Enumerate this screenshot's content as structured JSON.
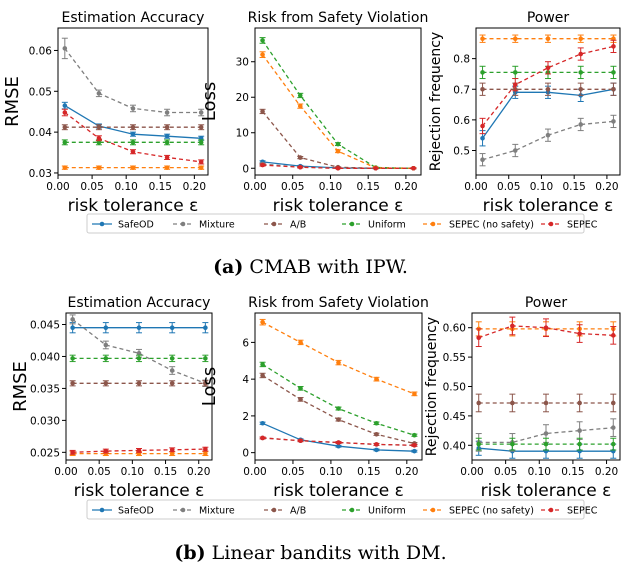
{
  "legend": [
    {
      "name": "SafeOD",
      "color": "#1f77b4"
    },
    {
      "name": "Mixture",
      "color": "#7f7f7f"
    },
    {
      "name": "A/B",
      "color": "#8c564b"
    },
    {
      "name": "Uniform",
      "color": "#2ca02c"
    },
    {
      "name": "SEPEC (no safety)",
      "color": "#ff7f0e"
    },
    {
      "name": "SEPEC",
      "color": "#d62728"
    }
  ],
  "captions": {
    "a_label": "(a)",
    "a_text": "CMAB with IPW.",
    "b_label": "(b)",
    "b_text": "Linear bandits with DM."
  },
  "chart_data": [
    {
      "type": "line",
      "title": "Estimation Accuracy",
      "xlabel": "risk tolerance ε",
      "ylabel": "RMSE",
      "x": [
        0.01,
        0.06,
        0.11,
        0.16,
        0.21
      ],
      "xticks": [
        "0.00",
        "0.05",
        "0.10",
        "0.15",
        "0.20"
      ],
      "xlim": [
        0.0,
        0.22
      ],
      "ylim": [
        0.0295,
        0.0655
      ],
      "yticks": [
        0.03,
        0.04,
        0.05,
        0.06
      ],
      "yticklabels": [
        "0.03",
        "0.04",
        "0.05",
        "0.06"
      ],
      "series": [
        {
          "name": "SafeOD",
          "values": [
            0.0465,
            0.0415,
            0.0395,
            0.039,
            0.0385
          ],
          "err": [
            0.0008,
            0.0005,
            0.0005,
            0.0005,
            0.0005
          ]
        },
        {
          "name": "Mixture",
          "values": [
            0.0605,
            0.0495,
            0.0458,
            0.0448,
            0.0448
          ],
          "err": [
            0.0025,
            0.0008,
            0.0008,
            0.0008,
            0.0008
          ]
        },
        {
          "name": "A/B",
          "values": [
            0.0412,
            0.0412,
            0.0412,
            0.0412,
            0.0412
          ],
          "err": [
            0.0006,
            0.0006,
            0.0006,
            0.0006,
            0.0006
          ]
        },
        {
          "name": "Uniform",
          "values": [
            0.0375,
            0.0375,
            0.0375,
            0.0375,
            0.0375
          ],
          "err": [
            0.0006,
            0.0006,
            0.0006,
            0.0006,
            0.0006
          ]
        },
        {
          "name": "SEPEC (no safety)",
          "values": [
            0.0313,
            0.0313,
            0.0313,
            0.0313,
            0.0313
          ],
          "err": [
            0.0004,
            0.0004,
            0.0004,
            0.0004,
            0.0004
          ]
        },
        {
          "name": "SEPEC",
          "values": [
            0.0448,
            0.0385,
            0.0352,
            0.0338,
            0.0327
          ],
          "err": [
            0.0008,
            0.0006,
            0.0005,
            0.0005,
            0.0005
          ]
        }
      ]
    },
    {
      "type": "line",
      "title": "Risk from Safety Violation",
      "xlabel": "risk tolerance ε",
      "ylabel": "Loss",
      "x": [
        0.01,
        0.06,
        0.11,
        0.16,
        0.21
      ],
      "xticks": [
        "0.00",
        "0.05",
        "0.10",
        "0.15",
        "0.20"
      ],
      "xlim": [
        0.0,
        0.22
      ],
      "ylim": [
        -1.9,
        39.5
      ],
      "yticks": [
        0,
        10,
        20,
        30
      ],
      "yticklabels": [
        "0",
        "10",
        "20",
        "30"
      ],
      "series": [
        {
          "name": "SafeOD",
          "values": [
            1.8,
            0.6,
            0.1,
            0.0,
            0.0
          ],
          "err": [
            0.3,
            0.2,
            0.1,
            0.1,
            0.1
          ]
        },
        {
          "name": "Mixture",
          "values": [
            1.2,
            0.3,
            0.0,
            0.0,
            0.0
          ],
          "err": [
            0.3,
            0.2,
            0.1,
            0.1,
            0.1
          ]
        },
        {
          "name": "A/B",
          "values": [
            16.0,
            3.0,
            0.3,
            0.0,
            0.0
          ],
          "err": [
            0.6,
            0.3,
            0.1,
            0.1,
            0.1
          ]
        },
        {
          "name": "Uniform",
          "values": [
            36.0,
            20.5,
            6.8,
            0.2,
            0.0
          ],
          "err": [
            0.8,
            0.6,
            0.4,
            0.1,
            0.1
          ]
        },
        {
          "name": "SEPEC (no safety)",
          "values": [
            32.0,
            17.5,
            4.8,
            0.1,
            0.0
          ],
          "err": [
            0.8,
            0.6,
            0.4,
            0.1,
            0.1
          ]
        },
        {
          "name": "SEPEC",
          "values": [
            0.9,
            0.3,
            0.0,
            0.0,
            0.0
          ],
          "err": [
            0.3,
            0.2,
            0.1,
            0.1,
            0.1
          ]
        }
      ]
    },
    {
      "type": "line",
      "title": "Power",
      "xlabel": "risk tolerance ε",
      "ylabel": "Rejection frequency",
      "x": [
        0.01,
        0.06,
        0.11,
        0.16,
        0.21
      ],
      "xticks": [
        "0.00",
        "0.05",
        "0.10",
        "0.15",
        "0.20"
      ],
      "xlim": [
        0.0,
        0.22
      ],
      "ylim": [
        0.42,
        0.9
      ],
      "yticks": [
        0.5,
        0.6,
        0.7,
        0.8
      ],
      "yticklabels": [
        "0.5",
        "0.6",
        "0.7",
        "0.8"
      ],
      "series": [
        {
          "name": "SafeOD",
          "values": [
            0.54,
            0.69,
            0.69,
            0.68,
            0.7
          ],
          "err": [
            0.025,
            0.02,
            0.02,
            0.02,
            0.02
          ]
        },
        {
          "name": "Mixture",
          "values": [
            0.47,
            0.5,
            0.55,
            0.585,
            0.595
          ],
          "err": [
            0.02,
            0.02,
            0.02,
            0.02,
            0.02
          ]
        },
        {
          "name": "A/B",
          "values": [
            0.7,
            0.7,
            0.7,
            0.7,
            0.7
          ],
          "err": [
            0.02,
            0.02,
            0.02,
            0.02,
            0.02
          ]
        },
        {
          "name": "Uniform",
          "values": [
            0.755,
            0.755,
            0.755,
            0.755,
            0.755
          ],
          "err": [
            0.02,
            0.02,
            0.02,
            0.02,
            0.02
          ]
        },
        {
          "name": "SEPEC (no safety)",
          "values": [
            0.865,
            0.865,
            0.865,
            0.865,
            0.865
          ],
          "err": [
            0.012,
            0.012,
            0.012,
            0.012,
            0.012
          ]
        },
        {
          "name": "SEPEC",
          "values": [
            0.58,
            0.715,
            0.77,
            0.815,
            0.84
          ],
          "err": [
            0.025,
            0.02,
            0.02,
            0.02,
            0.02
          ]
        }
      ]
    },
    {
      "type": "line",
      "title": "Estimation Accuracy",
      "xlabel": "risk tolerance ε",
      "ylabel": "RMSE",
      "x": [
        0.01,
        0.06,
        0.11,
        0.16,
        0.21
      ],
      "xticks": [
        "0.00",
        "0.05",
        "0.10",
        "0.15",
        "0.20"
      ],
      "xlim": [
        0.0,
        0.22
      ],
      "ylim": [
        0.0238,
        0.0468
      ],
      "yticks": [
        0.025,
        0.03,
        0.035,
        0.04,
        0.045
      ],
      "yticklabels": [
        "0.025",
        "0.030",
        "0.035",
        "0.040",
        "0.045"
      ],
      "series": [
        {
          "name": "SafeOD",
          "values": [
            0.0445,
            0.0445,
            0.0445,
            0.0445,
            0.0445
          ],
          "err": [
            0.0008,
            0.0008,
            0.0008,
            0.0008,
            0.0008
          ]
        },
        {
          "name": "Mixture",
          "values": [
            0.0458,
            0.0418,
            0.0405,
            0.0378,
            0.0358
          ],
          "err": [
            0.0007,
            0.0006,
            0.0006,
            0.0006,
            0.0005
          ]
        },
        {
          "name": "A/B",
          "values": [
            0.0358,
            0.0358,
            0.0358,
            0.0358,
            0.0358
          ],
          "err": [
            0.0004,
            0.0004,
            0.0004,
            0.0004,
            0.0004
          ]
        },
        {
          "name": "Uniform",
          "values": [
            0.0397,
            0.0397,
            0.0397,
            0.0397,
            0.0397
          ],
          "err": [
            0.0005,
            0.0005,
            0.0005,
            0.0005,
            0.0005
          ]
        },
        {
          "name": "SEPEC (no safety)",
          "values": [
            0.0248,
            0.0248,
            0.0248,
            0.0248,
            0.0248
          ],
          "err": [
            0.0003,
            0.0003,
            0.0003,
            0.0003,
            0.0003
          ]
        },
        {
          "name": "SEPEC",
          "values": [
            0.025,
            0.0252,
            0.0253,
            0.0254,
            0.0255
          ],
          "err": [
            0.0003,
            0.0003,
            0.0003,
            0.0003,
            0.0003
          ]
        }
      ]
    },
    {
      "type": "line",
      "title": "Risk from Safety Violation",
      "xlabel": "risk tolerance ε",
      "ylabel": "Loss",
      "x": [
        0.01,
        0.06,
        0.11,
        0.16,
        0.21
      ],
      "xticks": [
        "0.00",
        "0.05",
        "0.10",
        "0.15",
        "0.20"
      ],
      "xlim": [
        0.0,
        0.22
      ],
      "ylim": [
        -0.4,
        7.6
      ],
      "yticks": [
        0,
        2,
        4,
        6
      ],
      "yticklabels": [
        "0",
        "2",
        "4",
        "6"
      ],
      "series": [
        {
          "name": "SafeOD",
          "values": [
            1.6,
            0.7,
            0.35,
            0.15,
            0.08
          ],
          "err": [
            0.06,
            0.05,
            0.05,
            0.05,
            0.05
          ]
        },
        {
          "name": "Mixture",
          "values": [
            0.8,
            0.65,
            0.55,
            0.45,
            0.4
          ],
          "err": [
            0.05,
            0.05,
            0.05,
            0.05,
            0.05
          ]
        },
        {
          "name": "A/B",
          "values": [
            4.2,
            2.9,
            1.8,
            1.0,
            0.5
          ],
          "err": [
            0.12,
            0.1,
            0.08,
            0.06,
            0.05
          ]
        },
        {
          "name": "Uniform",
          "values": [
            4.8,
            3.5,
            2.4,
            1.6,
            0.95
          ],
          "err": [
            0.12,
            0.1,
            0.08,
            0.07,
            0.06
          ]
        },
        {
          "name": "SEPEC (no safety)",
          "values": [
            7.1,
            6.0,
            4.9,
            4.0,
            3.2
          ],
          "err": [
            0.15,
            0.12,
            0.12,
            0.1,
            0.1
          ]
        },
        {
          "name": "SEPEC",
          "values": [
            0.8,
            0.65,
            0.55,
            0.45,
            0.4
          ],
          "err": [
            0.05,
            0.05,
            0.05,
            0.05,
            0.05
          ]
        }
      ]
    },
    {
      "type": "line",
      "title": "Power",
      "xlabel": "risk tolerance ε",
      "ylabel": "Rejection frequency",
      "x": [
        0.01,
        0.06,
        0.11,
        0.16,
        0.21
      ],
      "xticks": [
        "0.00",
        "0.05",
        "0.10",
        "0.15",
        "0.20"
      ],
      "xlim": [
        0.0,
        0.22
      ],
      "ylim": [
        0.375,
        0.625
      ],
      "yticks": [
        0.4,
        0.45,
        0.5,
        0.55,
        0.6
      ],
      "yticklabels": [
        "0.40",
        "0.45",
        "0.50",
        "0.55",
        "0.60"
      ],
      "series": [
        {
          "name": "SafeOD",
          "values": [
            0.395,
            0.39,
            0.39,
            0.39,
            0.39
          ],
          "err": [
            0.012,
            0.012,
            0.012,
            0.012,
            0.012
          ]
        },
        {
          "name": "Mixture",
          "values": [
            0.405,
            0.405,
            0.42,
            0.425,
            0.43
          ],
          "err": [
            0.015,
            0.015,
            0.015,
            0.015,
            0.015
          ]
        },
        {
          "name": "A/B",
          "values": [
            0.472,
            0.472,
            0.472,
            0.472,
            0.472
          ],
          "err": [
            0.015,
            0.015,
            0.015,
            0.015,
            0.015
          ]
        },
        {
          "name": "Uniform",
          "values": [
            0.402,
            0.402,
            0.402,
            0.402,
            0.402
          ],
          "err": [
            0.01,
            0.01,
            0.01,
            0.01,
            0.01
          ]
        },
        {
          "name": "SEPEC (no safety)",
          "values": [
            0.598,
            0.598,
            0.598,
            0.598,
            0.598
          ],
          "err": [
            0.012,
            0.012,
            0.012,
            0.012,
            0.012
          ]
        },
        {
          "name": "SEPEC",
          "values": [
            0.583,
            0.603,
            0.6,
            0.59,
            0.587
          ],
          "err": [
            0.015,
            0.015,
            0.015,
            0.015,
            0.015
          ]
        }
      ]
    }
  ]
}
